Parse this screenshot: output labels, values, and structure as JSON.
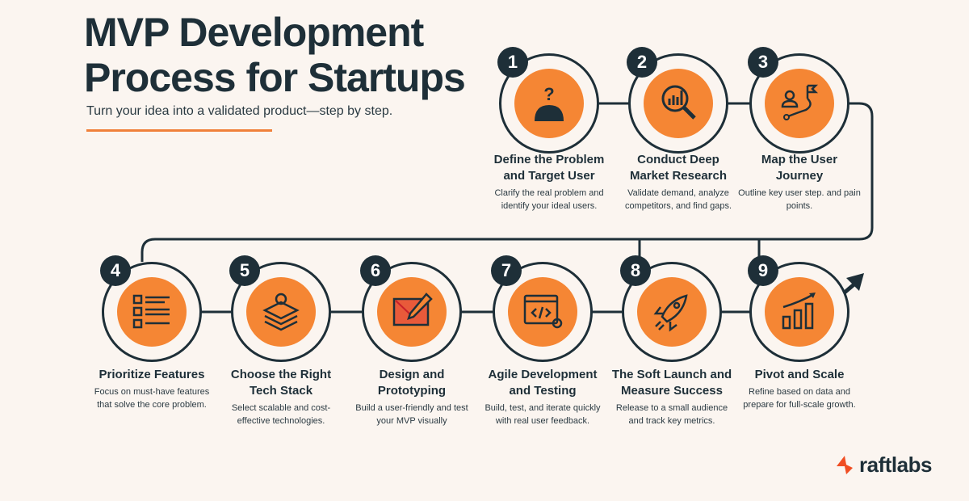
{
  "header": {
    "title_line1": "MVP Development",
    "title_line2": "Process for Startups",
    "subtitle": "Turn your idea into a validated product—step by step."
  },
  "colors": {
    "accent": "#f58634",
    "dark": "#1e2f38",
    "background": "#fbf5f0",
    "logo": "#f04e23"
  },
  "steps": [
    {
      "number": "1",
      "icon": "question-person-icon",
      "title": "Define the Problem and Target User",
      "description": "Clarify the real problem and identify your ideal users."
    },
    {
      "number": "2",
      "icon": "magnifier-chart-icon",
      "title": "Conduct Deep Market Research",
      "description": "Validate demand, analyze competitors, and find gaps."
    },
    {
      "number": "3",
      "icon": "user-journey-flag-icon",
      "title": "Map the User Journey",
      "description": "Outline key user step. and pain points."
    },
    {
      "number": "4",
      "icon": "checklist-icon",
      "title": "Prioritize Features",
      "description": "Focus on must-have features that solve the core problem."
    },
    {
      "number": "5",
      "icon": "layers-gear-icon",
      "title": "Choose the Right Tech Stack",
      "description": "Select scalable and cost-effective technologies."
    },
    {
      "number": "6",
      "icon": "wireframe-pencil-icon",
      "title": "Design and Prototyping",
      "description": "Build a user-friendly and test your MVP visually"
    },
    {
      "number": "7",
      "icon": "code-window-gear-icon",
      "title": "Agile Development and Testing",
      "description": "Build, test, and iterate quickly with real user feedback."
    },
    {
      "number": "8",
      "icon": "rocket-icon",
      "title": "The Soft Launch and Measure Success",
      "description": "Release to a small audience and track key metrics."
    },
    {
      "number": "9",
      "icon": "growth-chart-icon",
      "title": "Pivot and Scale",
      "description": "Refine based on data and prepare for full-scale growth."
    }
  ],
  "logo": {
    "text": "raftlabs"
  }
}
